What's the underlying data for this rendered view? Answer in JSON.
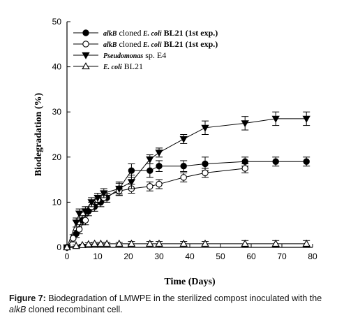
{
  "chart_data": {
    "type": "line",
    "xlabel": "Time (Days)",
    "ylabel": "Biodegradation (%)",
    "xlim": [
      0,
      80
    ],
    "ylim": [
      0,
      50
    ],
    "xticks": [
      "0",
      "10",
      "20",
      "30",
      "40",
      "50",
      "60",
      "70",
      "80"
    ],
    "yticks": [
      "0",
      "10",
      "20",
      "30",
      "40",
      "50"
    ],
    "grid": false,
    "legend_position": "top-left",
    "series": [
      {
        "name": "alkB cloned E. coli BL21 (1st exp.)",
        "name_parts": [
          "alkB",
          "cloned",
          "E. coli",
          "BL21 (1st exp.)"
        ],
        "marker": "filled-circle",
        "x": [
          0,
          3,
          5,
          7,
          9,
          11,
          13,
          17,
          21,
          27,
          30,
          38,
          45,
          58,
          68,
          78
        ],
        "y": [
          0,
          3,
          6,
          8,
          9,
          10,
          11,
          13,
          17,
          17,
          18,
          18,
          18.5,
          19,
          19,
          19
        ],
        "err": [
          0.3,
          0.8,
          1,
          1,
          1,
          1,
          1,
          1.2,
          1.5,
          1.5,
          1.2,
          1.2,
          1.5,
          1,
          1,
          1
        ]
      },
      {
        "name": "alkB cloned E. coli BL21 (1st exp.)",
        "name_parts": [
          "alkB",
          "cloned",
          "E. coli",
          "BL21 (1st exp.)"
        ],
        "marker": "open-circle",
        "x": [
          0,
          2,
          4,
          6,
          8,
          10,
          12,
          17,
          21,
          27,
          30,
          38,
          45,
          58
        ],
        "y": [
          0,
          2,
          4,
          6,
          9,
          10.5,
          11,
          12.5,
          13,
          13.5,
          14,
          15.5,
          16.5,
          17.5
        ],
        "err": [
          0.3,
          0.8,
          1,
          1,
          1,
          1,
          1,
          1,
          1,
          1,
          1,
          1,
          1,
          1
        ]
      },
      {
        "name": "Pseudomonas sp. E4",
        "name_parts": [
          "Pseudomonas",
          "sp. E4"
        ],
        "marker": "filled-triangle-down",
        "x": [
          0,
          3,
          4,
          6,
          8,
          10,
          12,
          17,
          21,
          27,
          30,
          38,
          45,
          58,
          68,
          78
        ],
        "y": [
          0,
          5.5,
          7.5,
          8,
          10,
          11,
          12,
          13,
          14.5,
          19.5,
          21,
          24,
          26.5,
          27.5,
          28.5,
          28.5
        ],
        "err": [
          0.3,
          1,
          1,
          1,
          1,
          1,
          1,
          1.5,
          1.5,
          1,
          1,
          1,
          1.5,
          1.5,
          1.5,
          1.5
        ]
      },
      {
        "name": "E. coli BL21",
        "name_parts": [
          "E. coli",
          "BL21"
        ],
        "marker": "open-triangle-up",
        "x": [
          0,
          3,
          5,
          7,
          9,
          11,
          13,
          17,
          21,
          27,
          30,
          38,
          45,
          58,
          68,
          78
        ],
        "y": [
          0,
          0.3,
          0.5,
          0.7,
          0.8,
          0.8,
          0.8,
          0.8,
          0.8,
          0.8,
          0.8,
          0.8,
          0.8,
          0.8,
          0.8,
          0.8
        ],
        "err": [
          0.1,
          0.2,
          0.2,
          0.3,
          0.3,
          0.3,
          0.3,
          0.3,
          0.5,
          0.5,
          0.5,
          0.5,
          0.5,
          0.7,
          0.7,
          0.7
        ]
      }
    ]
  },
  "caption": {
    "label": "Figure 7:",
    "text_before": " Biodegradation of LMWPE in the sterilized compost inoculated with the ",
    "italic": "alkB",
    "text_after": " cloned recombinant cell."
  }
}
